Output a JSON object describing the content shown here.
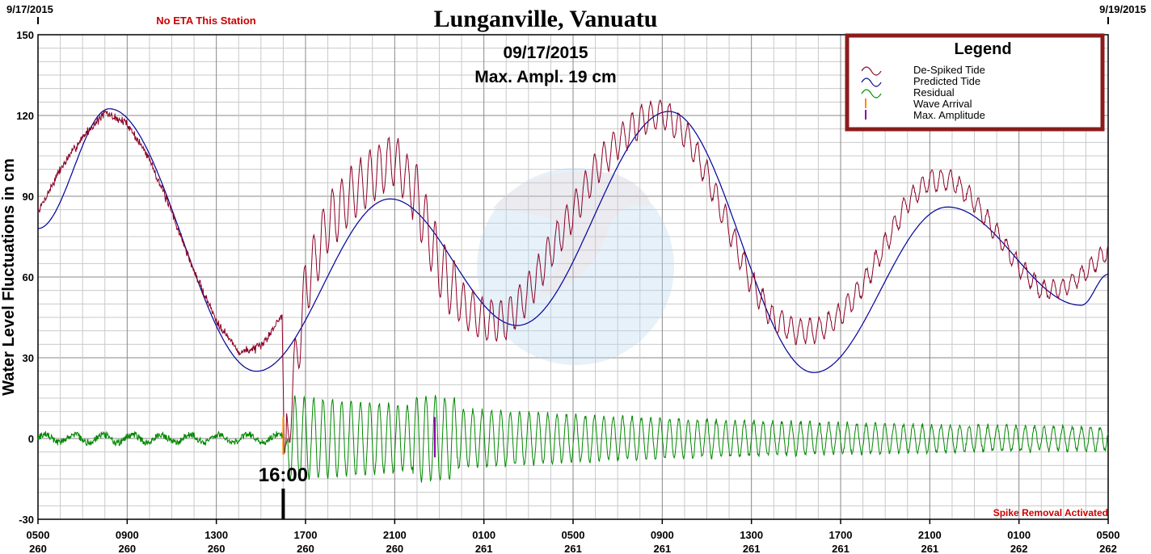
{
  "chart_data": {
    "type": "line",
    "title": "Lunganville, Vanuatu",
    "date_label": "09/17/2015",
    "max_ampl_label": "Max. Ampl.  19 cm",
    "eta_note": "No ETA This Station",
    "spike_note": "Spike Removal Activated",
    "start_date": "9/17/2015",
    "end_date": "9/19/2015",
    "ylabel": "Water Level Fluctuations in cm",
    "xlabel": "",
    "ylim": [
      -30,
      150
    ],
    "yticks": [
      -30,
      0,
      30,
      60,
      90,
      120,
      150
    ],
    "xlim_hours": [
      0,
      48
    ],
    "xticks": [
      {
        "h": 0,
        "time": "0500",
        "day": "260"
      },
      {
        "h": 4,
        "time": "0900",
        "day": "260"
      },
      {
        "h": 8,
        "time": "1300",
        "day": "260"
      },
      {
        "h": 12,
        "time": "1700",
        "day": "260"
      },
      {
        "h": 16,
        "time": "2100",
        "day": "260"
      },
      {
        "h": 20,
        "time": "0100",
        "day": "261"
      },
      {
        "h": 24,
        "time": "0500",
        "day": "261"
      },
      {
        "h": 28,
        "time": "0900",
        "day": "261"
      },
      {
        "h": 32,
        "time": "1300",
        "day": "261"
      },
      {
        "h": 36,
        "time": "1700",
        "day": "261"
      },
      {
        "h": 40,
        "time": "2100",
        "day": "261"
      },
      {
        "h": 44,
        "time": "0100",
        "day": "262"
      },
      {
        "h": 48,
        "time": "0500",
        "day": "262"
      }
    ],
    "event_label": "16:00",
    "event_hour": 11.0,
    "max_amp_hour": 17.8,
    "predicted_anchors_h_cm": [
      [
        0,
        78
      ],
      [
        3.2,
        122.5
      ],
      [
        9.8,
        25
      ],
      [
        15.8,
        89
      ],
      [
        21.5,
        42
      ],
      [
        28.3,
        121.5
      ],
      [
        34.8,
        24.5
      ],
      [
        40.8,
        86
      ],
      [
        46.8,
        49.5
      ],
      [
        48,
        61
      ]
    ],
    "despiked_anchors_h_cm": [
      [
        0,
        84
      ],
      [
        1,
        100
      ],
      [
        2,
        112
      ],
      [
        3,
        121
      ],
      [
        4,
        117
      ],
      [
        5,
        104
      ],
      [
        6,
        84
      ],
      [
        7,
        62
      ],
      [
        8,
        44
      ],
      [
        9,
        32
      ],
      [
        10,
        34
      ],
      [
        10.95,
        46
      ],
      [
        11.05,
        -6
      ],
      [
        12,
        56
      ],
      [
        13,
        80
      ],
      [
        14,
        90
      ],
      [
        15,
        98
      ],
      [
        16,
        104
      ],
      [
        17,
        90
      ],
      [
        18,
        64
      ],
      [
        19,
        50
      ],
      [
        20,
        44
      ],
      [
        21,
        44
      ],
      [
        22,
        54
      ],
      [
        23,
        70
      ],
      [
        24,
        84
      ],
      [
        25,
        100
      ],
      [
        26,
        110
      ],
      [
        27,
        118
      ],
      [
        28,
        121
      ],
      [
        29,
        114
      ],
      [
        30,
        98
      ],
      [
        31,
        78
      ],
      [
        32,
        58
      ],
      [
        33,
        44
      ],
      [
        34,
        40
      ],
      [
        35,
        40
      ],
      [
        36,
        46
      ],
      [
        37,
        57
      ],
      [
        38,
        72
      ],
      [
        39,
        88
      ],
      [
        40,
        96
      ],
      [
        41,
        96
      ],
      [
        42,
        88
      ],
      [
        43,
        76
      ],
      [
        44,
        64
      ],
      [
        45,
        55
      ],
      [
        46,
        56
      ],
      [
        47,
        62
      ],
      [
        48,
        70
      ]
    ],
    "series": [
      {
        "name": "De-Spiked Tide",
        "color": "#8b0025"
      },
      {
        "name": "Predicted Tide",
        "color": "#000099"
      },
      {
        "name": "Residual",
        "color": "#008800"
      },
      {
        "name": "Wave Arrival",
        "color": "#ff8800"
      },
      {
        "name": "Max. Amplitude",
        "color": "#8800aa"
      }
    ],
    "legend_title": "Legend",
    "legend_position": "top-right"
  }
}
